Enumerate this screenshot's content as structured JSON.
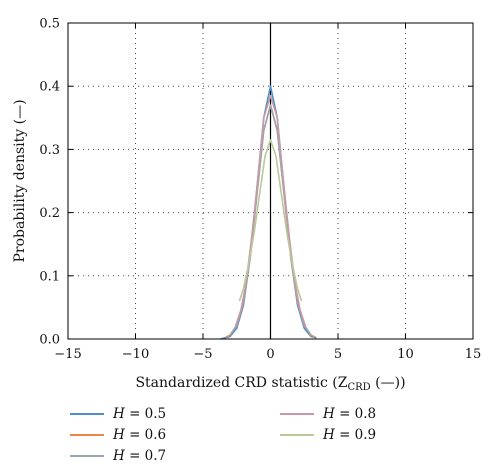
{
  "chart_data": {
    "type": "line",
    "xlabel": "Standardized CRD statistic (Z",
    "xlabel_sub": "CRD",
    "xlabel_unit": " (—))",
    "ylabel": "Probability density (—)",
    "xlim": [
      -15,
      15
    ],
    "ylim": [
      0,
      0.5
    ],
    "xticks": [
      -15,
      -10,
      -5,
      0,
      5,
      10,
      15
    ],
    "yticks": [
      0.0,
      0.1,
      0.2,
      0.3,
      0.4,
      0.5
    ],
    "xtick_labels": [
      "−15",
      "−10",
      "−5",
      "0",
      "5",
      "10",
      "15"
    ],
    "ytick_labels": [
      "0.0",
      "0.1",
      "0.2",
      "0.3",
      "0.4",
      "0.5"
    ],
    "grid": true,
    "legend_position": "bottom",
    "series": [
      {
        "name": "H = 0.5",
        "var": "H",
        "value": "0.5",
        "color": "#4f8fc9",
        "x": [
          -3.7,
          -3.0,
          -2.5,
          -2.0,
          -1.5,
          -1.0,
          -0.5,
          0.0,
          0.5,
          1.0,
          1.5,
          2.0,
          2.5,
          3.0,
          3.4
        ],
        "y": [
          0.0,
          0.004,
          0.017,
          0.054,
          0.13,
          0.24,
          0.35,
          0.4,
          0.35,
          0.24,
          0.13,
          0.054,
          0.017,
          0.004,
          0.002
        ]
      },
      {
        "name": "H = 0.6",
        "var": "H",
        "value": "0.6",
        "color": "#e8884f",
        "x": [
          -3.3,
          -3.0,
          -2.5,
          -2.0,
          -1.5,
          -1.0,
          -0.5,
          0.0,
          0.5,
          1.0,
          1.5,
          2.0,
          2.5,
          3.0,
          3.3
        ],
        "y": [
          0.003,
          0.006,
          0.021,
          0.059,
          0.13,
          0.23,
          0.33,
          0.37,
          0.33,
          0.23,
          0.13,
          0.059,
          0.021,
          0.006,
          0.003
        ]
      },
      {
        "name": "H = 0.7",
        "var": "H",
        "value": "0.7",
        "color": "#9aa4b2",
        "x": [
          -3.0,
          -2.5,
          -2.0,
          -1.5,
          -1.0,
          -0.5,
          0.0,
          0.5,
          1.0,
          1.5,
          2.0,
          2.5,
          3.0
        ],
        "y": [
          0.006,
          0.022,
          0.06,
          0.13,
          0.23,
          0.33,
          0.37,
          0.33,
          0.23,
          0.13,
          0.06,
          0.022,
          0.006
        ]
      },
      {
        "name": "H = 0.8",
        "var": "H",
        "value": "0.8",
        "color": "#c99aa6",
        "x": [
          -2.6,
          -2.2,
          -1.8,
          -1.4,
          -1.0,
          -0.5,
          0.0,
          0.5,
          1.0,
          1.4,
          1.8,
          2.2,
          2.6
        ],
        "y": [
          0.02,
          0.045,
          0.09,
          0.16,
          0.24,
          0.35,
          0.385,
          0.35,
          0.24,
          0.16,
          0.09,
          0.045,
          0.02
        ]
      },
      {
        "name": "H = 0.9",
        "var": "H",
        "value": "0.9",
        "color": "#b9c99a",
        "x": [
          -2.3,
          -2.0,
          -1.6,
          -1.2,
          -0.8,
          -0.4,
          0.0,
          0.4,
          0.8,
          1.2,
          1.6,
          2.0,
          2.3
        ],
        "y": [
          0.06,
          0.08,
          0.12,
          0.17,
          0.23,
          0.29,
          0.315,
          0.29,
          0.23,
          0.17,
          0.12,
          0.08,
          0.06
        ]
      }
    ]
  }
}
